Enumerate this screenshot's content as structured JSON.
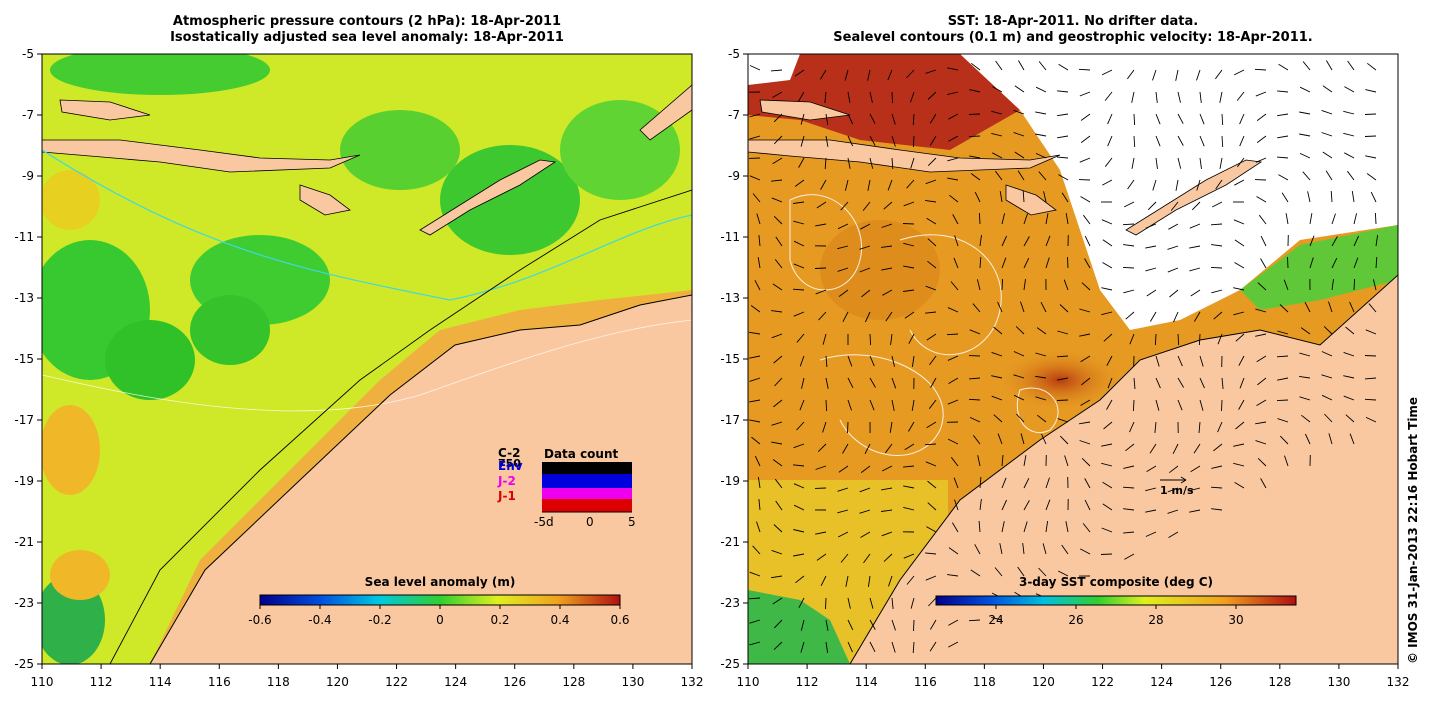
{
  "left_panel": {
    "title_line1": "Atmospheric pressure contours (2 hPa): 18-Apr-2011",
    "title_line2": "Isostatically adjusted sea level anomaly: 18-Apr-2011",
    "x_ticks": [
      "110",
      "112",
      "114",
      "116",
      "118",
      "120",
      "122",
      "124",
      "126",
      "128",
      "130",
      "132"
    ],
    "y_ticks": [
      "-5",
      "-7",
      "-9",
      "-11",
      "-13",
      "-15",
      "-17",
      "-19",
      "-21",
      "-23",
      "-25"
    ],
    "colorbar": {
      "label": "Sea level anomaly (m)",
      "ticks": [
        "-0.6",
        "-0.4",
        "-0.2",
        "0",
        "0.2",
        "0.4",
        "0.6"
      ],
      "range": [
        -0.6,
        0.6
      ]
    },
    "legend": {
      "items": [
        {
          "label": "C-2",
          "color": "#000000"
        },
        {
          "label": "Env",
          "color": "#0000dd"
        },
        {
          "label": "J-2",
          "color": "#ee00ee"
        },
        {
          "label": "J-1",
          "color": "#dd0000"
        }
      ],
      "count_label": "750",
      "data_count_title": "Data count",
      "axis_ticks": [
        "-5d",
        "0",
        "5"
      ]
    }
  },
  "right_panel": {
    "title_line1": "SST: 18-Apr-2011. No drifter data.",
    "title_line2": "Sealevel contours (0.1 m) and geostrophic velocity: 18-Apr-2011.",
    "x_ticks": [
      "110",
      "112",
      "114",
      "116",
      "118",
      "120",
      "122",
      "124",
      "126",
      "128",
      "130",
      "132"
    ],
    "y_ticks": [
      "-5",
      "-7",
      "-9",
      "-11",
      "-13",
      "-15",
      "-17",
      "-19",
      "-21",
      "-23",
      "-25"
    ],
    "colorbar": {
      "label": "3-day SST composite (deg C)",
      "ticks": [
        "24",
        "26",
        "28",
        "30"
      ],
      "range": [
        22.5,
        31.5
      ]
    },
    "velocity_scale_label": "1 m/s"
  },
  "credit": "© IMOS 31-Jan-2013 22:16 Hobart Time",
  "colors": {
    "land": "#f9c8a0",
    "ocean_green": "#3fd02a",
    "ocean_yellow": "#d8ee20",
    "sst_orange": "#e39a20",
    "sst_red": "#c24a10"
  }
}
